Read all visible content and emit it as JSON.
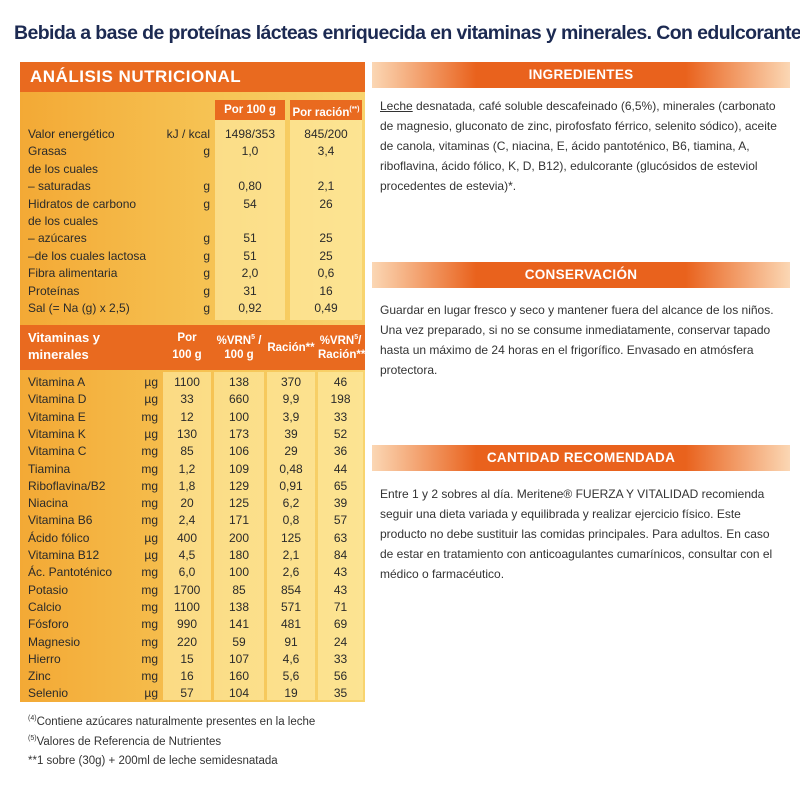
{
  "title": "Bebida a base de proteínas lácteas enriquecida en vitaminas y minerales. Con edulcorante.",
  "nutrition": {
    "heading": "ANÁLISIS NUTRICIONAL",
    "columns": [
      {
        "text": "Por 100 g"
      },
      {
        "text": "Por ración",
        "sup": "(**)"
      }
    ],
    "rows": [
      {
        "label": "Valor energético",
        "unit": "kJ / kcal",
        "per100": "1498/353",
        "perServing": "845/200"
      },
      {
        "label": "Grasas",
        "unit": "g",
        "per100": "1,0",
        "perServing": "3,4"
      },
      {
        "label": "de los cuales"
      },
      {
        "label": "– saturadas",
        "unit": "g",
        "per100": "0,80",
        "perServing": "2,1"
      },
      {
        "label": "Hidratos de carbono",
        "unit": "g",
        "per100": "54",
        "perServing": "26"
      },
      {
        "label": "de los cuales"
      },
      {
        "label": "– azúcares",
        "unit": "g",
        "per100": "51",
        "perServing": "25"
      },
      {
        "label": "–de los cuales lactosa",
        "unit": "g",
        "per100": "51",
        "perServing": "25"
      },
      {
        "label": "Fibra alimentaria",
        "unit": "g",
        "per100": "2,0",
        "perServing": "0,6"
      },
      {
        "label": "Proteínas",
        "unit": "g",
        "per100": "31",
        "perServing": "16"
      },
      {
        "label": "Sal (= Na (g) x 2,5)",
        "unit": "g",
        "per100": "0,92",
        "perServing": "0,49"
      }
    ]
  },
  "vitamins": {
    "header": [
      [
        [
          {
            "t": "Vitaminas y"
          }
        ],
        [
          {
            "t": "minerales"
          }
        ]
      ],
      [
        [
          {
            "t": "Por"
          }
        ],
        [
          {
            "t": "100 g"
          }
        ]
      ],
      [
        [
          {
            "t": "%VRN"
          },
          {
            "t": "5",
            "sup": true
          },
          {
            "t": " /"
          }
        ],
        [
          {
            "t": "100 g"
          }
        ]
      ],
      [
        [
          {
            "t": "Ración**"
          }
        ]
      ],
      [
        [
          {
            "t": "%VRN"
          },
          {
            "t": "5",
            "sup": true
          },
          {
            "t": "/"
          }
        ],
        [
          {
            "t": "Ración**"
          }
        ]
      ]
    ],
    "rows": [
      [
        "Vitamina A",
        "µg",
        "1100",
        "138",
        "370",
        "46"
      ],
      [
        "Vitamina D",
        "µg",
        "33",
        "660",
        "9,9",
        "198"
      ],
      [
        "Vitamina E",
        "mg",
        "12",
        "100",
        "3,9",
        "33"
      ],
      [
        "Vitamina K",
        "µg",
        "130",
        "173",
        "39",
        "52"
      ],
      [
        "Vitamina C",
        "mg",
        "85",
        "106",
        "29",
        "36"
      ],
      [
        "Tiamina",
        "mg",
        "1,2",
        "109",
        "0,48",
        "44"
      ],
      [
        "Riboflavina/B2",
        "mg",
        "1,8",
        "129",
        "0,91",
        "65"
      ],
      [
        "Niacina",
        "mg",
        "20",
        "125",
        "6,2",
        "39"
      ],
      [
        "Vitamina B6",
        "mg",
        "2,4",
        "171",
        "0,8",
        "57"
      ],
      [
        "Ácido fólico",
        "µg",
        "400",
        "200",
        "125",
        "63"
      ],
      [
        "Vitamina B12",
        "µg",
        "4,5",
        "180",
        "2,1",
        "84"
      ],
      [
        "Ác. Pantoténico",
        "mg",
        "6,0",
        "100",
        "2,6",
        "43"
      ],
      [
        "Potasio",
        "mg",
        "1700",
        "85",
        "854",
        "43"
      ],
      [
        "Calcio",
        "mg",
        "1100",
        "138",
        "571",
        "71"
      ],
      [
        "Fósforo",
        "mg",
        "990",
        "141",
        "481",
        "69"
      ],
      [
        "Magnesio",
        "mg",
        "220",
        "59",
        "91",
        "24"
      ],
      [
        "Hierro",
        "mg",
        "15",
        "107",
        "4,6",
        "33"
      ],
      [
        "Zinc",
        "mg",
        "16",
        "160",
        "5,6",
        "56"
      ],
      [
        "Selenio",
        "µg",
        "57",
        "104",
        "19",
        "35"
      ]
    ]
  },
  "footnotes": [
    {
      "mark": "(4)",
      "text": "Contiene azúcares naturalmente presentes en la leche"
    },
    {
      "mark": "(5)",
      "text": "Valores de Referencia de Nutrientes"
    },
    {
      "text": "**1 sobre (30g) + 200ml de leche semidesnatada"
    }
  ],
  "ingredients": {
    "heading": "INGREDIENTES",
    "underlined": "Leche",
    "text": " desnatada, café soluble descafeinado (6,5%), minerales (carbonato de magnesio, gluconato de zinc, pirofosfato férrico, selenito sódico), aceite de canola, vitaminas (C, niacina, E, ácido pantoténico, B6, tiamina, A, riboflavina, ácido fólico, K, D, B12), edulcorante (glucósidos de esteviol procedentes de estevia)*."
  },
  "conservation": {
    "heading": "CONSERVACIÓN",
    "text": "Guardar en lugar fresco y seco y mantener fuera del alcance de los niños. Una vez preparado, si no se consume inmediatamente, conservar tapado hasta un máximo de 24 horas en el frigorífico. Envasado en atmósfera protectora."
  },
  "recommended": {
    "heading": "CANTIDAD RECOMENDADA",
    "text": "Entre 1 y 2 sobres al día. Meritene® FUERZA Y VITALIDAD recomienda seguir una dieta variada y equilibrada y realizar ejercicio físico. Este producto no debe sustituir las comidas principales. Para adultos. En caso de estar en tratamiento con anticoagulantes cumarínicos, consultar con el médico o farmacéutico."
  }
}
